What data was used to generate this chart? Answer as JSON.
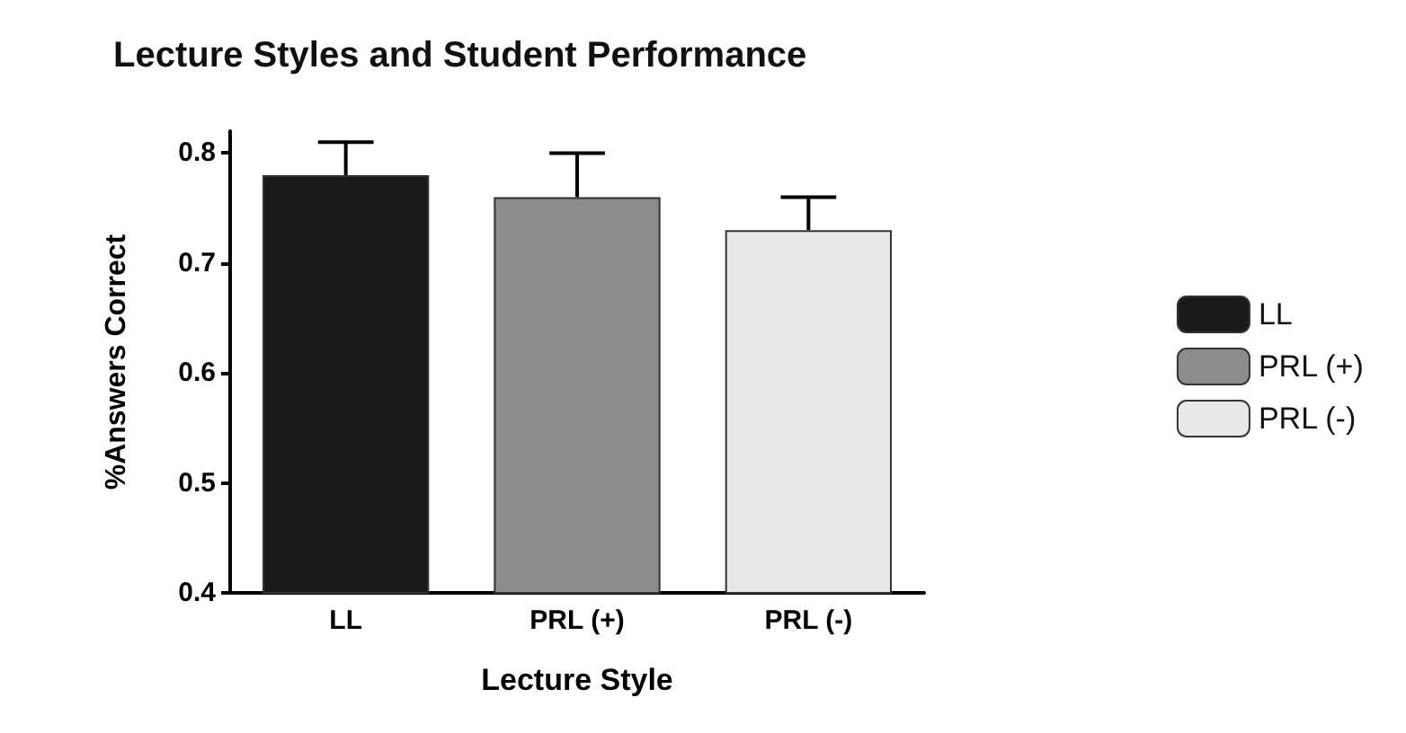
{
  "chart_data": {
    "type": "bar",
    "title": "Lecture Styles and Student Performance",
    "xlabel": "Lecture Style",
    "ylabel": "%Answers Correct",
    "categories": [
      "LL",
      "PRL (+)",
      "PRL (-)"
    ],
    "series": [
      {
        "name": "LL",
        "color": "#1a1a1a",
        "values": [
          0.78,
          null,
          null
        ],
        "errors": [
          [
            0.78,
            0.81
          ],
          null,
          null
        ]
      },
      {
        "name": "PRL (+)",
        "color": "#8c8c8c",
        "values": [
          null,
          0.76,
          null
        ],
        "errors": [
          null,
          [
            0.76,
            0.8
          ],
          null
        ]
      },
      {
        "name": "PRL (-)",
        "color": "#e8e8e8",
        "values": [
          null,
          null,
          0.73
        ],
        "errors": [
          null,
          null,
          [
            0.73,
            0.76
          ]
        ]
      }
    ],
    "ylim": [
      0.4,
      0.82
    ],
    "yticks": [
      0.4,
      0.5,
      0.6,
      0.7,
      0.8
    ],
    "grid": false,
    "legend": "right"
  }
}
